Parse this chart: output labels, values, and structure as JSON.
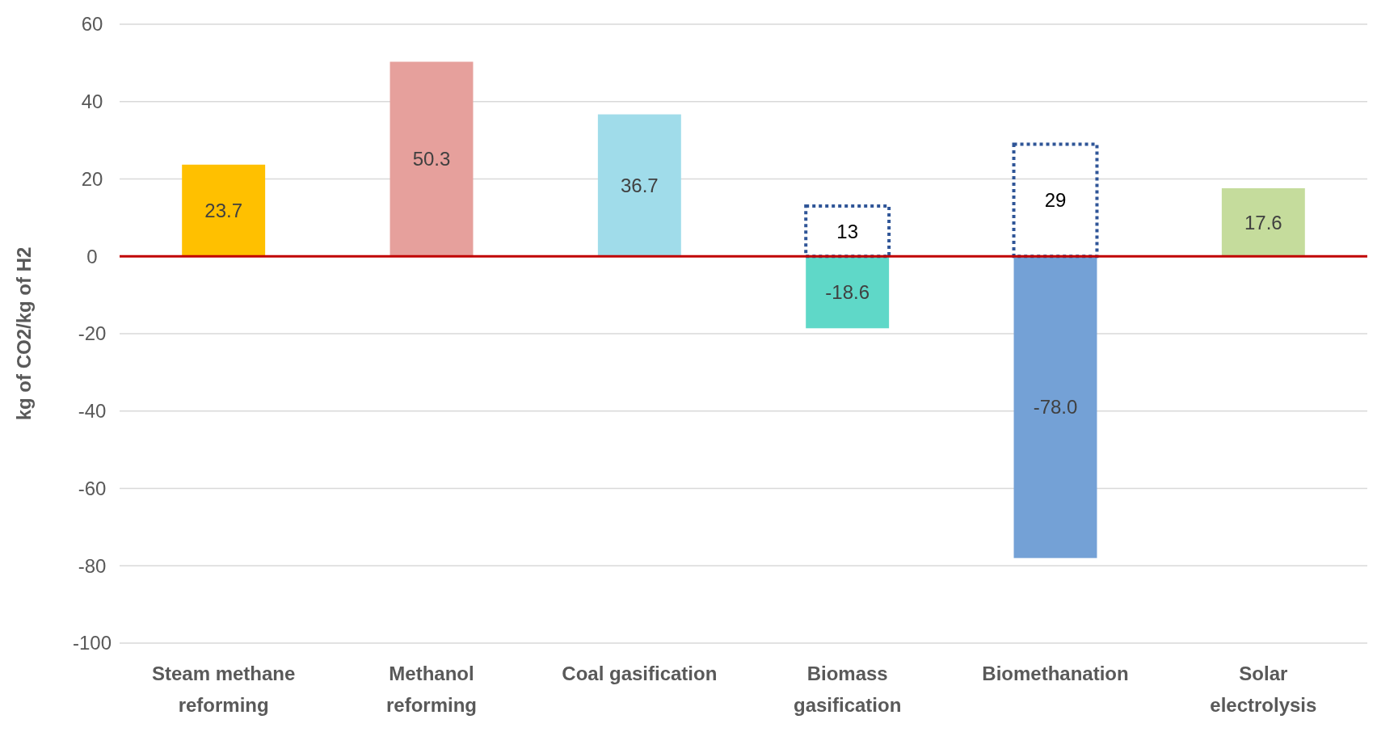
{
  "chart_data": {
    "type": "bar",
    "ylabel": "kg of CO2/kg of H2",
    "categories": [
      "Steam methane reforming",
      "Methanol reforming",
      "Coal gasification",
      "Biomass gasification",
      "Biomethanation",
      "Solar electrolysis"
    ],
    "series": [
      {
        "colors": [
          "#ffc000",
          "#e6a09c",
          "#a0dcea",
          "#5fd8c8",
          "#74a1d6",
          "#c5dc9c"
        ],
        "values": [
          23.7,
          50.3,
          36.7,
          -18.6,
          -78.0,
          17.6
        ],
        "value_labels": [
          "23.7",
          "50.3",
          "36.7",
          "-18.6",
          "-78.0",
          "17.6"
        ]
      },
      {
        "color": "#2f5597",
        "line_style": "dotted",
        "values": [
          null,
          null,
          null,
          13,
          29,
          null
        ],
        "value_labels": [
          null,
          null,
          null,
          "13",
          "29",
          null
        ]
      }
    ],
    "ylim": [
      -100,
      60
    ],
    "yticks": [
      -100,
      -80,
      -60,
      -40,
      -20,
      0,
      20,
      40,
      60
    ],
    "grid": "y",
    "ref_lines": [
      {
        "axis": "y",
        "value": 0,
        "color": "#c00000"
      }
    ]
  }
}
